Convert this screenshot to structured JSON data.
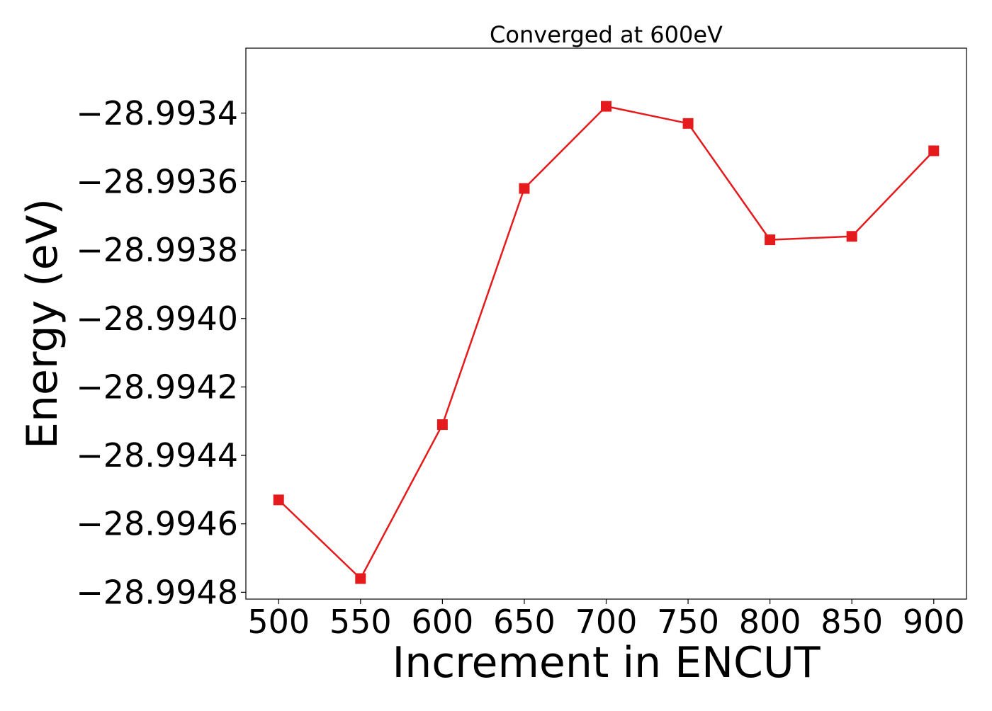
{
  "chart_data": {
    "type": "line",
    "title": "Converged at 600eV",
    "xlabel": "Increment in ENCUT",
    "ylabel": "Energy (eV)",
    "x": [
      500,
      550,
      600,
      650,
      700,
      750,
      800,
      850,
      900
    ],
    "series": [
      {
        "name": "",
        "values": [
          -28.99453,
          -28.99476,
          -28.99431,
          -28.99362,
          -28.99338,
          -28.99343,
          -28.99377,
          -28.99376,
          -28.99351
        ],
        "color": "#e41a1c",
        "marker": "square"
      }
    ],
    "xlim": [
      480,
      920
    ],
    "ylim": [
      -28.99482,
      -28.99321
    ],
    "xticks": [
      500,
      550,
      600,
      650,
      700,
      750,
      800,
      850,
      900
    ],
    "xtick_labels": [
      "500",
      "550",
      "600",
      "650",
      "700",
      "750",
      "800",
      "850",
      "900"
    ],
    "yticks": [
      -28.9948,
      -28.9946,
      -28.9944,
      -28.9942,
      -28.994,
      -28.9938,
      -28.9936,
      -28.9934
    ],
    "ytick_labels": [
      "−28.9948",
      "−28.9946",
      "−28.9944",
      "−28.9942",
      "−28.9940",
      "−28.9938",
      "−28.9936",
      "−28.9934"
    ],
    "grid": false,
    "legend": "none"
  }
}
